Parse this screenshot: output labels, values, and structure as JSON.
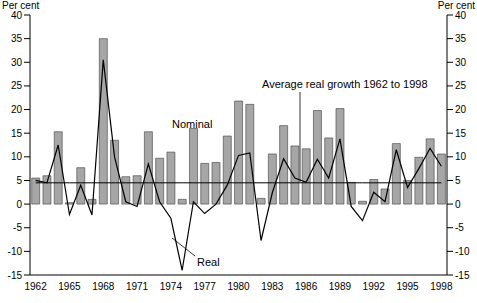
{
  "chart_data": {
    "type": "bar",
    "ylabel": "Per cent",
    "y2label": "Per cent",
    "categories": [
      "1962",
      null,
      null,
      "1965",
      null,
      null,
      "1968",
      null,
      null,
      "1971",
      null,
      null,
      "1974",
      null,
      null,
      "1977",
      null,
      null,
      "1980",
      null,
      null,
      "1983",
      null,
      null,
      "1986",
      null,
      null,
      "1989",
      null,
      null,
      "1992",
      null,
      null,
      "1995",
      null,
      null,
      "1998"
    ],
    "series": [
      {
        "name": "Nominal",
        "type": "bar",
        "color": "#a6a6a6",
        "values": [
          5.5,
          6,
          15.3,
          0.3,
          7.7,
          1,
          35,
          13.5,
          5.8,
          6,
          15.3,
          9.7,
          11,
          1,
          16,
          8.6,
          8.8,
          14.4,
          21.8,
          21.1,
          1.2,
          10.6,
          16.6,
          12.3,
          11.7,
          19.8,
          14,
          20.2,
          4.6,
          0.6,
          5.2,
          3.2,
          12.8,
          5,
          9.9,
          13.8,
          10.6
        ]
      },
      {
        "name": "Real",
        "type": "line",
        "color": "#000000",
        "values": [
          5,
          4.5,
          12.5,
          -2.2,
          4,
          -2.3,
          30.5,
          10,
          0.5,
          -0.5,
          8.5,
          0.5,
          -3,
          -14,
          0.5,
          -2,
          0,
          4,
          10.3,
          10.8,
          -7.7,
          2.4,
          9.6,
          5.5,
          4.6,
          9.5,
          5.5,
          13.8,
          -0.5,
          -3.5,
          2.5,
          0.5,
          11.5,
          3.5,
          7.5,
          11.8,
          8
        ]
      },
      {
        "name": "Average real growth 1962 to 1998",
        "type": "line",
        "color": "#000000",
        "values": [
          4.5,
          4.5,
          4.5,
          4.5,
          4.5,
          4.5,
          4.5,
          4.5,
          4.5,
          4.5,
          4.5,
          4.5,
          4.5,
          4.5,
          4.5,
          4.5,
          4.5,
          4.5,
          4.5,
          4.5,
          4.5,
          4.5,
          4.5,
          4.5,
          4.5,
          4.5,
          4.5,
          4.5,
          4.5,
          4.5,
          4.5,
          4.5,
          4.5,
          4.5,
          4.5,
          4.5,
          4.5
        ]
      }
    ],
    "ylim": [
      -15,
      40
    ],
    "yticks": [
      -15,
      -10,
      -5,
      0,
      5,
      10,
      15,
      20,
      25,
      30,
      35,
      40
    ],
    "y2lim": [
      -15,
      40
    ],
    "y2ticks": [
      -15,
      -10,
      -5,
      0,
      5,
      10,
      15,
      20,
      25,
      30,
      35,
      40
    ]
  }
}
